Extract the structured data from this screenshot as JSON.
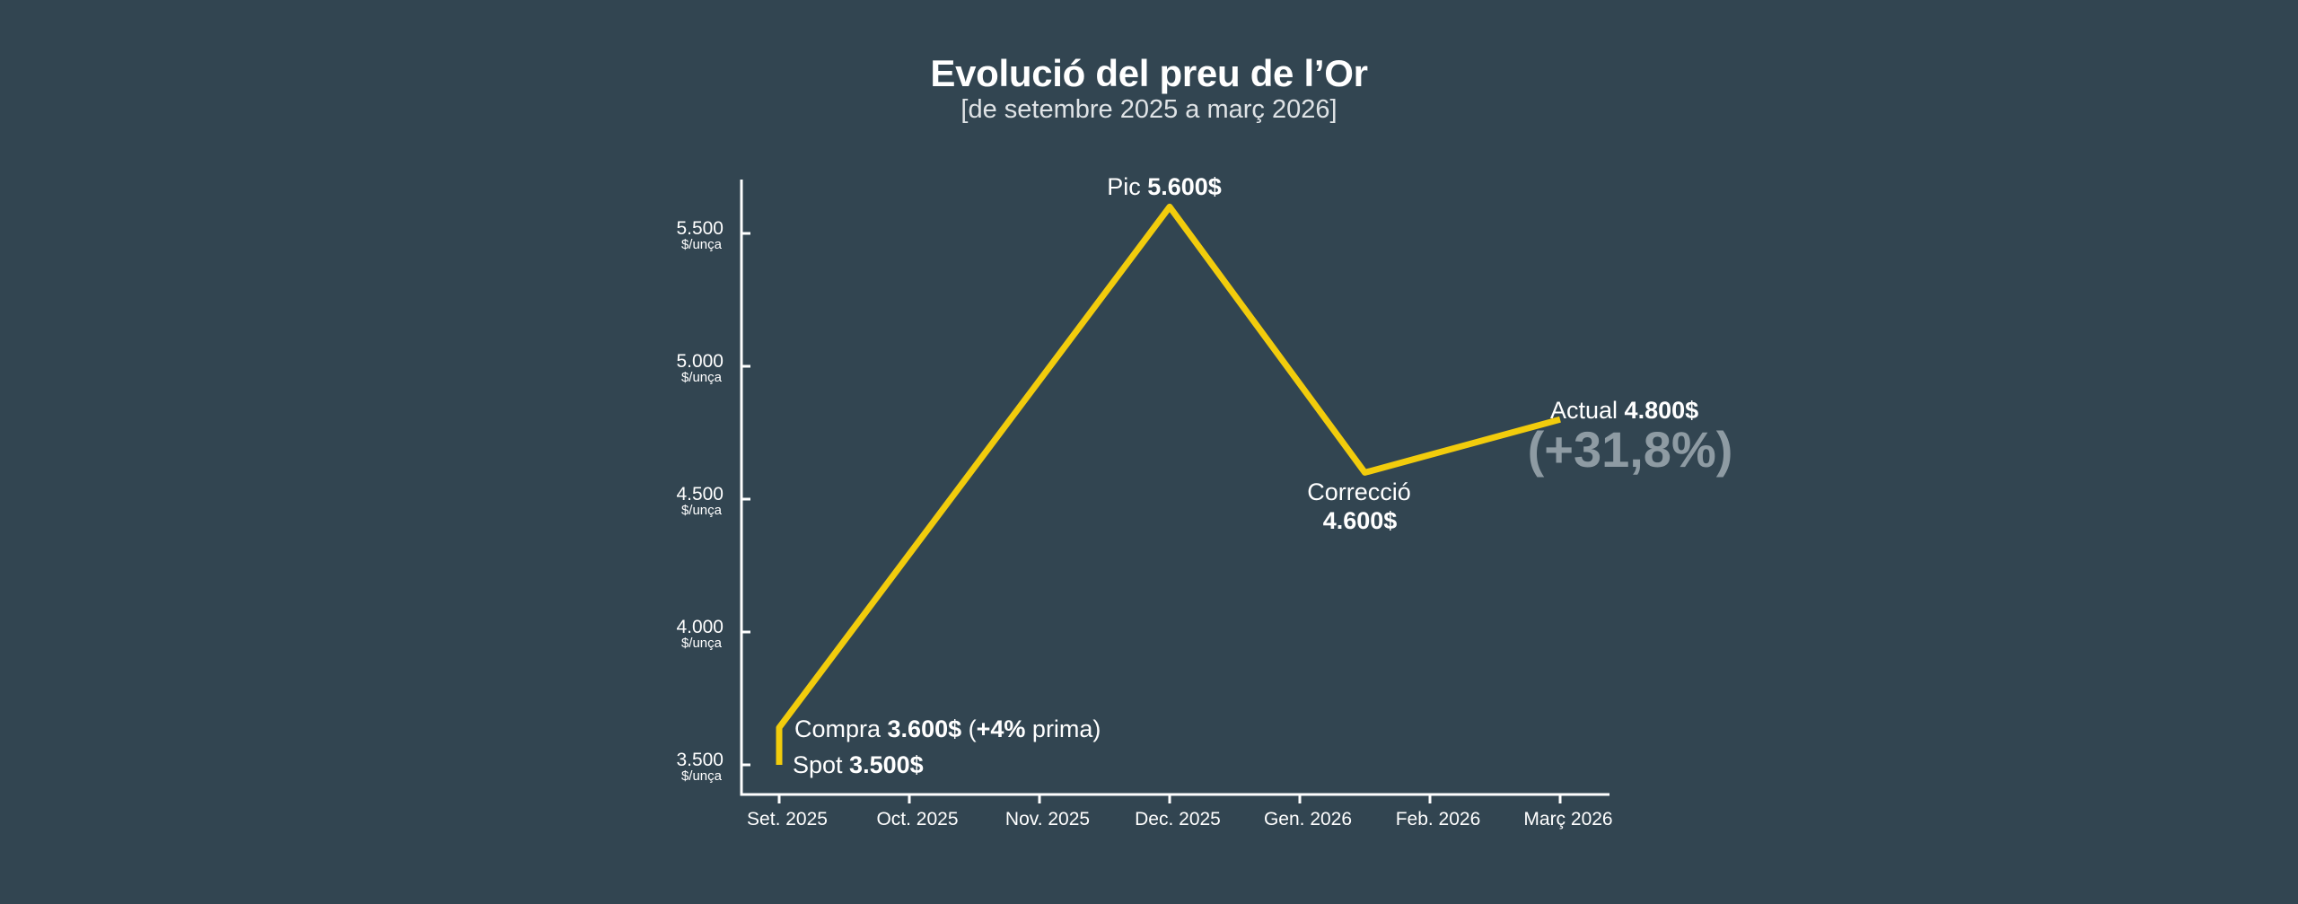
{
  "title": "Evolució del preu de l’Or",
  "subtitle": "[de setembre 2025 a març 2026]",
  "chart_data": {
    "type": "line",
    "title": "Evolució del preu de l’Or",
    "subtitle": "[de setembre 2025 a març 2026]",
    "xlabel": "",
    "ylabel": "",
    "y_unit": "$/unça",
    "categories": [
      "Set. 2025",
      "Oct. 2025",
      "Nov. 2025",
      "Dec. 2025",
      "Gen. 2026",
      "Feb. 2026",
      "Març 2026"
    ],
    "yticks": [
      {
        "value": 3500,
        "label": "3.500"
      },
      {
        "value": 4000,
        "label": "4.000"
      },
      {
        "value": 4500,
        "label": "4.500"
      },
      {
        "value": 5000,
        "label": "5.000"
      },
      {
        "value": 5500,
        "label": "5.500"
      }
    ],
    "ylim": [
      3390,
      5700
    ],
    "grid": false,
    "line_color": "#f2cc0c",
    "series": [
      {
        "points": [
          {
            "x": 0,
            "y": 3500
          },
          {
            "x": 0,
            "y": 3640
          },
          {
            "x": 3,
            "y": 5600
          },
          {
            "x": 4.5,
            "y": 4600
          },
          {
            "x": 6,
            "y": 4800
          }
        ]
      }
    ],
    "annotations": [
      {
        "id": "spot",
        "prefix": "Spot ",
        "value": "3.500$",
        "suffix": ""
      },
      {
        "id": "compra",
        "prefix": "Compra ",
        "value": "3.600$",
        "paren_open": " (",
        "premium": "+4%",
        "suffix": " prima)"
      },
      {
        "id": "pic",
        "prefix": "Pic ",
        "value": "5.600$"
      },
      {
        "id": "correccio",
        "label": "Correcció",
        "value": "4.600$"
      },
      {
        "id": "actual",
        "prefix": "Actual ",
        "value": "4.800$",
        "change": "(+31,8%)"
      }
    ]
  }
}
